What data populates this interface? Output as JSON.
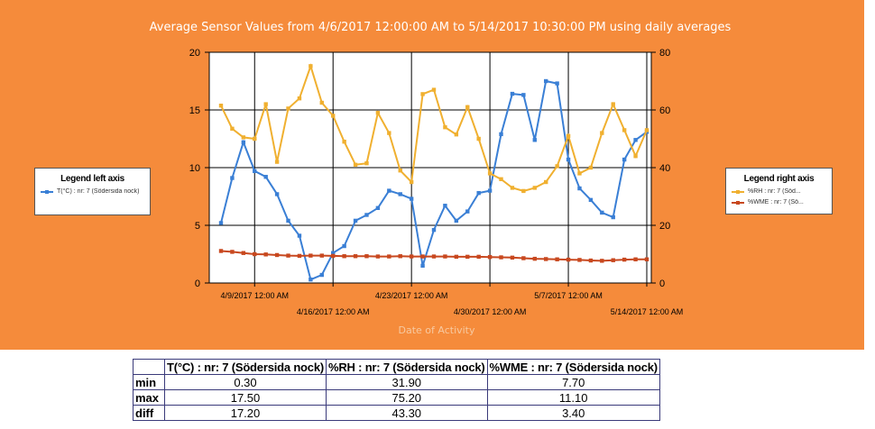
{
  "chart_data": {
    "type": "line",
    "title": "Average Sensor Values from 4/6/2017 12:00:00 AM to 5/14/2017 10:30:00 PM using daily averages",
    "xlabel": "Date of Activity",
    "x_ticks_top": [
      "4/9/2017 12:00 AM",
      "4/23/2017 12:00 AM",
      "5/7/2017 12:00 AM"
    ],
    "x_ticks_bottom": [
      "4/16/2017 12:00 AM",
      "4/30/2017 12:00 AM",
      "5/14/2017 12:00 AM"
    ],
    "x": [
      "4/6/2017",
      "4/7/2017",
      "4/8/2017",
      "4/9/2017",
      "4/10/2017",
      "4/11/2017",
      "4/12/2017",
      "4/13/2017",
      "4/14/2017",
      "4/15/2017",
      "4/16/2017",
      "4/17/2017",
      "4/18/2017",
      "4/19/2017",
      "4/20/2017",
      "4/21/2017",
      "4/22/2017",
      "4/23/2017",
      "4/24/2017",
      "4/25/2017",
      "4/26/2017",
      "4/27/2017",
      "4/28/2017",
      "4/29/2017",
      "4/30/2017",
      "5/1/2017",
      "5/2/2017",
      "5/3/2017",
      "5/4/2017",
      "5/5/2017",
      "5/6/2017",
      "5/7/2017",
      "5/8/2017",
      "5/9/2017",
      "5/10/2017",
      "5/11/2017",
      "5/12/2017",
      "5/13/2017",
      "5/14/2017"
    ],
    "y_left": {
      "range": [
        0,
        20
      ],
      "ticks": [
        "0",
        "5",
        "10",
        "15",
        "20"
      ]
    },
    "y_right": {
      "range": [
        0,
        80
      ],
      "ticks": [
        "0",
        "20",
        "40",
        "60",
        "80"
      ]
    },
    "grid": true,
    "series": [
      {
        "name": "T(°C) : nr: 7 (Södersida nock)",
        "axis": "left",
        "color": "#3a7fd5",
        "values": [
          5.2,
          9.1,
          12.2,
          9.7,
          9.2,
          7.7,
          5.4,
          4.1,
          0.3,
          0.7,
          2.6,
          3.2,
          5.4,
          5.9,
          6.5,
          8.0,
          7.7,
          7.3,
          1.5,
          4.6,
          6.7,
          5.4,
          6.2,
          7.8,
          8.0,
          12.9,
          16.4,
          16.3,
          12.4,
          17.5,
          17.3,
          10.7,
          8.2,
          7.2,
          6.1,
          5.7,
          10.7,
          12.4,
          13.1
        ]
      },
      {
        "name": "%RH : nr: 7 (Södersida nock)",
        "axis": "right",
        "color": "#f0b030",
        "values": [
          61.5,
          53.5,
          50.5,
          50.0,
          62.0,
          42.0,
          60.5,
          64.0,
          75.2,
          62.5,
          58.0,
          49.0,
          41.0,
          41.5,
          59.0,
          52.0,
          39.0,
          35.0,
          65.5,
          67.0,
          54.0,
          51.5,
          61.0,
          50.0,
          38.0,
          36.0,
          33.0,
          31.9,
          33.0,
          35.0,
          40.5,
          51.0,
          38.0,
          40.0,
          52.0,
          62.0,
          53.0,
          44.0,
          53.0
        ]
      },
      {
        "name": "%WME : nr: 7 (Södersida nock)",
        "axis": "right",
        "color": "#c8481f",
        "values": [
          11.1,
          10.8,
          10.4,
          10.0,
          9.9,
          9.7,
          9.5,
          9.4,
          9.5,
          9.5,
          9.4,
          9.3,
          9.3,
          9.3,
          9.2,
          9.2,
          9.3,
          9.2,
          9.2,
          9.2,
          9.2,
          9.1,
          9.1,
          9.1,
          9.0,
          8.9,
          8.8,
          8.6,
          8.4,
          8.3,
          8.2,
          8.1,
          8.0,
          7.8,
          7.7,
          7.9,
          8.1,
          8.2,
          8.2
        ]
      }
    ],
    "legend_left": {
      "title": "Legend left axis",
      "entries": [
        {
          "label": "T(°C) : nr: 7 (Södersida nock)",
          "color": "#3a7fd5"
        }
      ]
    },
    "legend_right": {
      "title": "Legend right axis",
      "entries": [
        {
          "label": "%RH : nr: 7 (Söd...",
          "color": "#f0b030"
        },
        {
          "label": "%WME : nr: 7 (Sö...",
          "color": "#c8481f"
        }
      ]
    }
  },
  "colors": {
    "panel_background": "#f58b3b",
    "plot_background": "#ffffff",
    "table_border": "#3a3a7a"
  },
  "stats_table": {
    "columns": [
      "T(°C) : nr: 7 (Södersida nock)",
      "%RH : nr: 7 (Södersida nock)",
      "%WME : nr: 7 (Södersida nock)"
    ],
    "rows": [
      {
        "label": "min",
        "values": [
          "0.30",
          "31.90",
          "7.70"
        ]
      },
      {
        "label": "max",
        "values": [
          "17.50",
          "75.20",
          "11.10"
        ]
      },
      {
        "label": "diff",
        "values": [
          "17.20",
          "43.30",
          "3.40"
        ]
      }
    ]
  }
}
